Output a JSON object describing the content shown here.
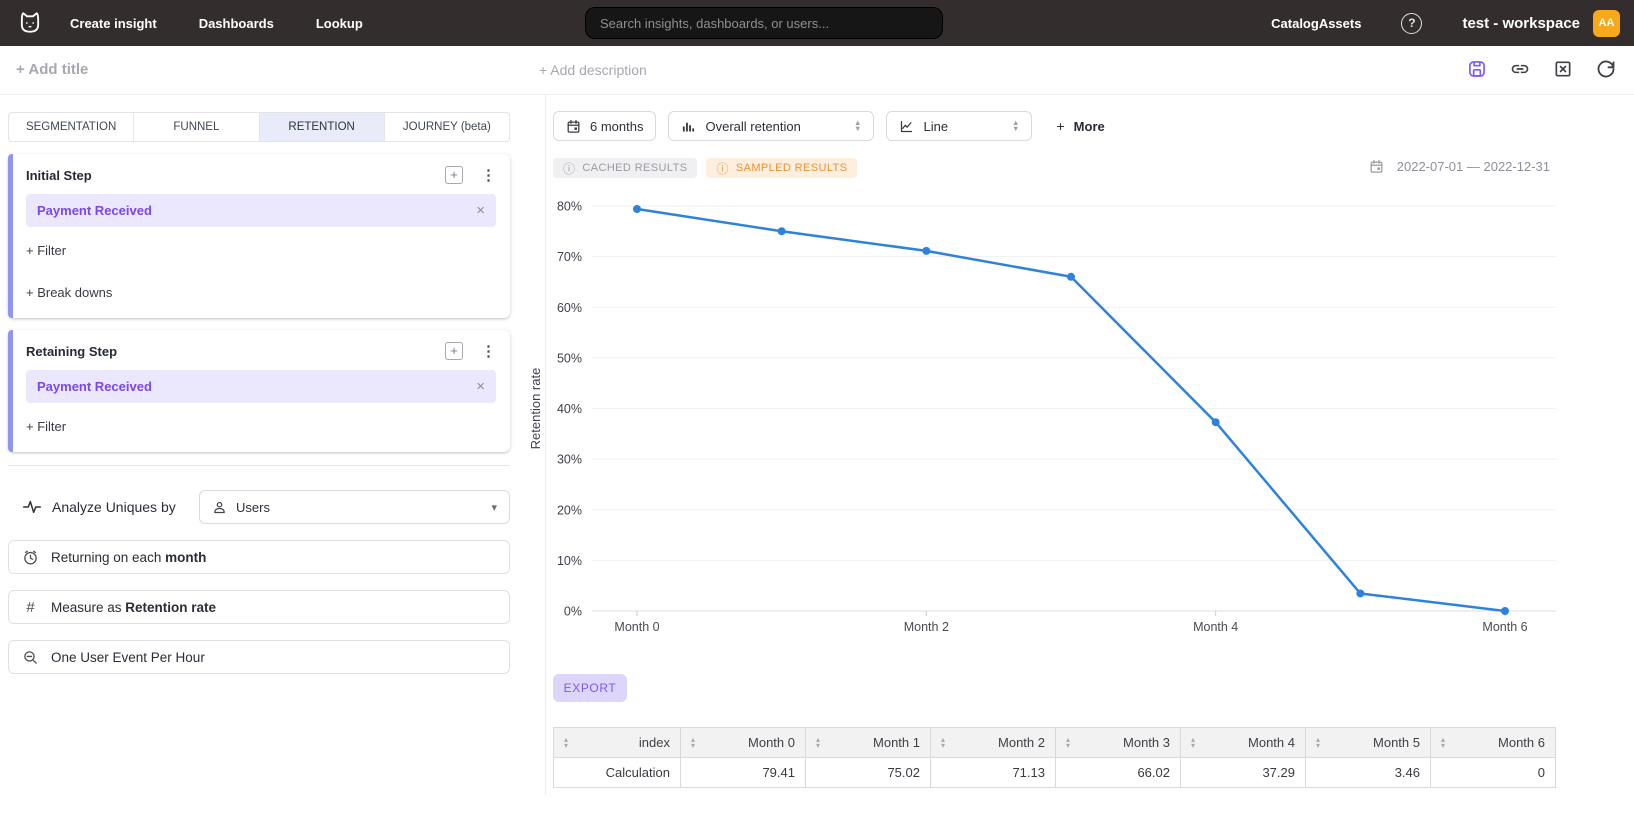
{
  "topnav": {
    "items": [
      {
        "label": "Create insight"
      },
      {
        "label": "Dashboards"
      },
      {
        "label": "Lookup"
      }
    ],
    "search_placeholder": "Search insights, dashboards, or users...",
    "right_items": [
      {
        "label": "Catalog"
      },
      {
        "label": "Assets"
      }
    ],
    "help_glyph": "?",
    "workspace": "test - workspace",
    "avatar_initials": "AA",
    "avatar_color": "#f7a81b"
  },
  "header": {
    "add_title": "+ Add title",
    "add_description": "+ Add description"
  },
  "sidebar": {
    "tabs": [
      {
        "label": "SEGMENTATION",
        "active": false
      },
      {
        "label": "FUNNEL",
        "active": false
      },
      {
        "label": "RETENTION",
        "active": true
      },
      {
        "label": "JOURNEY (beta)",
        "active": false
      }
    ],
    "initial_step": {
      "title": "Initial Step",
      "event": "Payment Received",
      "filter_label": "+ Filter",
      "breakdowns_label": "+ Break downs"
    },
    "retaining_step": {
      "title": "Retaining Step",
      "event": "Payment Received",
      "filter_label": "+ Filter"
    },
    "analyze": {
      "label": "Analyze Uniques by",
      "value": "Users"
    },
    "returning": {
      "prefix": "Returning on each ",
      "bold": "month"
    },
    "measure": {
      "prefix": "Measure as ",
      "bold": "Retention rate",
      "icon_glyph": "#"
    },
    "one_event": "One User Event Per Hour"
  },
  "toolbar": {
    "period_button": "6 months",
    "retention_select": "Overall retention",
    "chart_type_select": "Line",
    "more_plus": "+",
    "more_label": "More"
  },
  "badges": {
    "info_glyph": "ⓘ",
    "cached": "CACHED RESULTS",
    "sampled": "SAMPLED RESULTS",
    "sampled_color": "#ee9234"
  },
  "date_range": "2022-07-01 — 2022-12-31",
  "chart_data": {
    "type": "line",
    "x": [
      "Month 0",
      "Month 1",
      "Month 2",
      "Month 3",
      "Month 4",
      "Month 5",
      "Month 6"
    ],
    "series": [
      {
        "name": "Retention rate",
        "values": [
          79.41,
          75.02,
          71.13,
          66.02,
          37.29,
          3.46,
          0
        ]
      }
    ],
    "ylabel": "Retention rate",
    "yticks": [
      0,
      10,
      20,
      30,
      40,
      50,
      60,
      70,
      80
    ],
    "ytick_suffix": "%",
    "ylim": [
      0,
      84.5
    ],
    "xtick_indices": [
      0,
      2,
      4,
      6
    ],
    "grid": true,
    "legend": "none",
    "line_color": "#2e82dc"
  },
  "export_label": "EXPORT",
  "table": {
    "columns": [
      "index",
      "Month 0",
      "Month 1",
      "Month 2",
      "Month 3",
      "Month 4",
      "Month 5",
      "Month 6"
    ],
    "rows": [
      [
        "Calculation",
        "79.41",
        "75.02",
        "71.13",
        "66.02",
        "37.29",
        "3.46",
        "0"
      ]
    ]
  }
}
